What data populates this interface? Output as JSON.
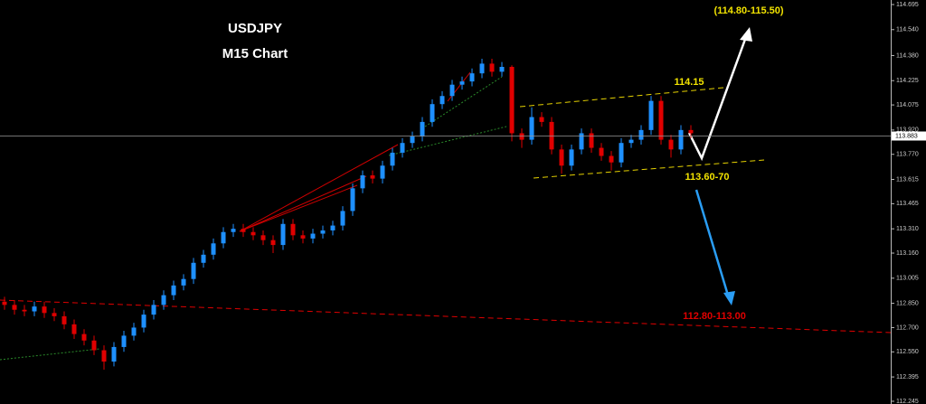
{
  "chart_data": {
    "type": "candlestick",
    "title": "USDJPY",
    "subtitle": "M15 Chart",
    "annotations": [
      "(114.80-115.50)",
      "114.15",
      "113.60-70",
      "112.80-113.00"
    ],
    "up_color": "#1e90ff",
    "down_color": "#e00000",
    "current_price": 113.883,
    "open": [
      112.86,
      112.84,
      112.81,
      112.8,
      112.83,
      112.79,
      112.77,
      112.72,
      112.66,
      112.62,
      112.56,
      112.49,
      112.58,
      112.65,
      112.7,
      112.78,
      112.84,
      112.9,
      112.96,
      113.0,
      113.1,
      113.15,
      113.22,
      113.29,
      113.31,
      113.29,
      113.27,
      113.24,
      113.21,
      113.34,
      113.27,
      113.25,
      113.28,
      113.3,
      113.33,
      113.42,
      113.56,
      113.64,
      113.62,
      113.7,
      113.78,
      113.84,
      113.88,
      113.97,
      114.08,
      114.13,
      114.2,
      114.22,
      114.27,
      114.33,
      114.28,
      114.31,
      113.9,
      113.86,
      114.0,
      113.97,
      113.8,
      113.7,
      113.8,
      113.9,
      113.81,
      113.76,
      113.72,
      113.84,
      113.86,
      113.92,
      114.1,
      113.86,
      113.8,
      113.92
    ],
    "high": [
      112.89,
      112.87,
      112.84,
      112.86,
      112.86,
      112.82,
      112.8,
      112.75,
      112.69,
      112.65,
      112.59,
      112.61,
      112.68,
      112.73,
      112.81,
      112.87,
      112.93,
      112.99,
      113.03,
      113.13,
      113.18,
      113.25,
      113.32,
      113.34,
      113.34,
      113.32,
      113.3,
      113.27,
      113.37,
      113.37,
      113.3,
      113.31,
      113.33,
      113.36,
      113.45,
      113.59,
      113.67,
      113.67,
      113.73,
      113.81,
      113.87,
      113.91,
      114.0,
      114.11,
      114.16,
      114.23,
      114.25,
      114.3,
      114.36,
      114.36,
      114.34,
      114.32,
      113.93,
      114.06,
      114.03,
      114.0,
      113.83,
      113.83,
      113.93,
      113.93,
      113.84,
      113.79,
      113.87,
      113.89,
      113.95,
      114.13,
      114.13,
      113.89,
      113.95,
      113.95
    ],
    "low": [
      112.81,
      112.78,
      112.77,
      112.77,
      112.76,
      112.74,
      112.69,
      112.63,
      112.59,
      112.53,
      112.44,
      112.46,
      112.55,
      112.62,
      112.67,
      112.75,
      112.81,
      112.87,
      112.93,
      112.97,
      113.07,
      113.12,
      113.19,
      113.26,
      113.26,
      113.24,
      113.21,
      113.16,
      113.18,
      113.24,
      113.22,
      113.22,
      113.25,
      113.27,
      113.3,
      113.39,
      113.53,
      113.59,
      113.59,
      113.67,
      113.75,
      113.81,
      113.85,
      113.94,
      114.05,
      114.1,
      114.17,
      114.19,
      114.24,
      114.25,
      114.25,
      113.85,
      113.81,
      113.83,
      113.94,
      113.77,
      113.65,
      113.67,
      113.77,
      113.78,
      113.73,
      113.67,
      113.69,
      113.81,
      113.83,
      113.89,
      113.83,
      113.75,
      113.77,
      113.87
    ],
    "close": [
      112.84,
      112.81,
      112.8,
      112.83,
      112.79,
      112.77,
      112.72,
      112.66,
      112.62,
      112.56,
      112.49,
      112.58,
      112.65,
      112.7,
      112.78,
      112.84,
      112.9,
      112.96,
      113.0,
      113.1,
      113.15,
      113.22,
      113.29,
      113.31,
      113.29,
      113.27,
      113.24,
      113.21,
      113.34,
      113.27,
      113.25,
      113.28,
      113.3,
      113.33,
      113.42,
      113.56,
      113.64,
      113.62,
      113.7,
      113.78,
      113.84,
      113.88,
      113.97,
      114.08,
      114.13,
      114.2,
      114.22,
      114.27,
      114.33,
      114.28,
      114.31,
      113.9,
      113.86,
      114.0,
      113.97,
      113.8,
      113.7,
      113.8,
      113.9,
      113.81,
      113.76,
      113.72,
      113.84,
      113.86,
      113.92,
      114.1,
      113.86,
      113.8,
      113.92,
      113.9
    ],
    "ylim": [
      112.228,
      114.723
    ],
    "yticks": [
      114.695,
      {
        "value": 114.54,
        "label": "114.540"
      },
      {
        "value": 114.38,
        "label": "114.380"
      },
      114.225,
      114.075,
      {
        "value": 113.92,
        "label": "113.920"
      },
      {
        "value": 113.77,
        "label": "113.770"
      },
      113.615,
      113.465,
      {
        "value": 113.31,
        "label": "113.310"
      },
      {
        "value": 113.16,
        "label": "113.160"
      },
      113.005,
      {
        "value": 112.85,
        "label": "112.850"
      },
      {
        "value": 112.7,
        "label": "112.700"
      },
      {
        "value": 112.55,
        "label": "112.550"
      },
      112.395,
      112.245
    ]
  }
}
